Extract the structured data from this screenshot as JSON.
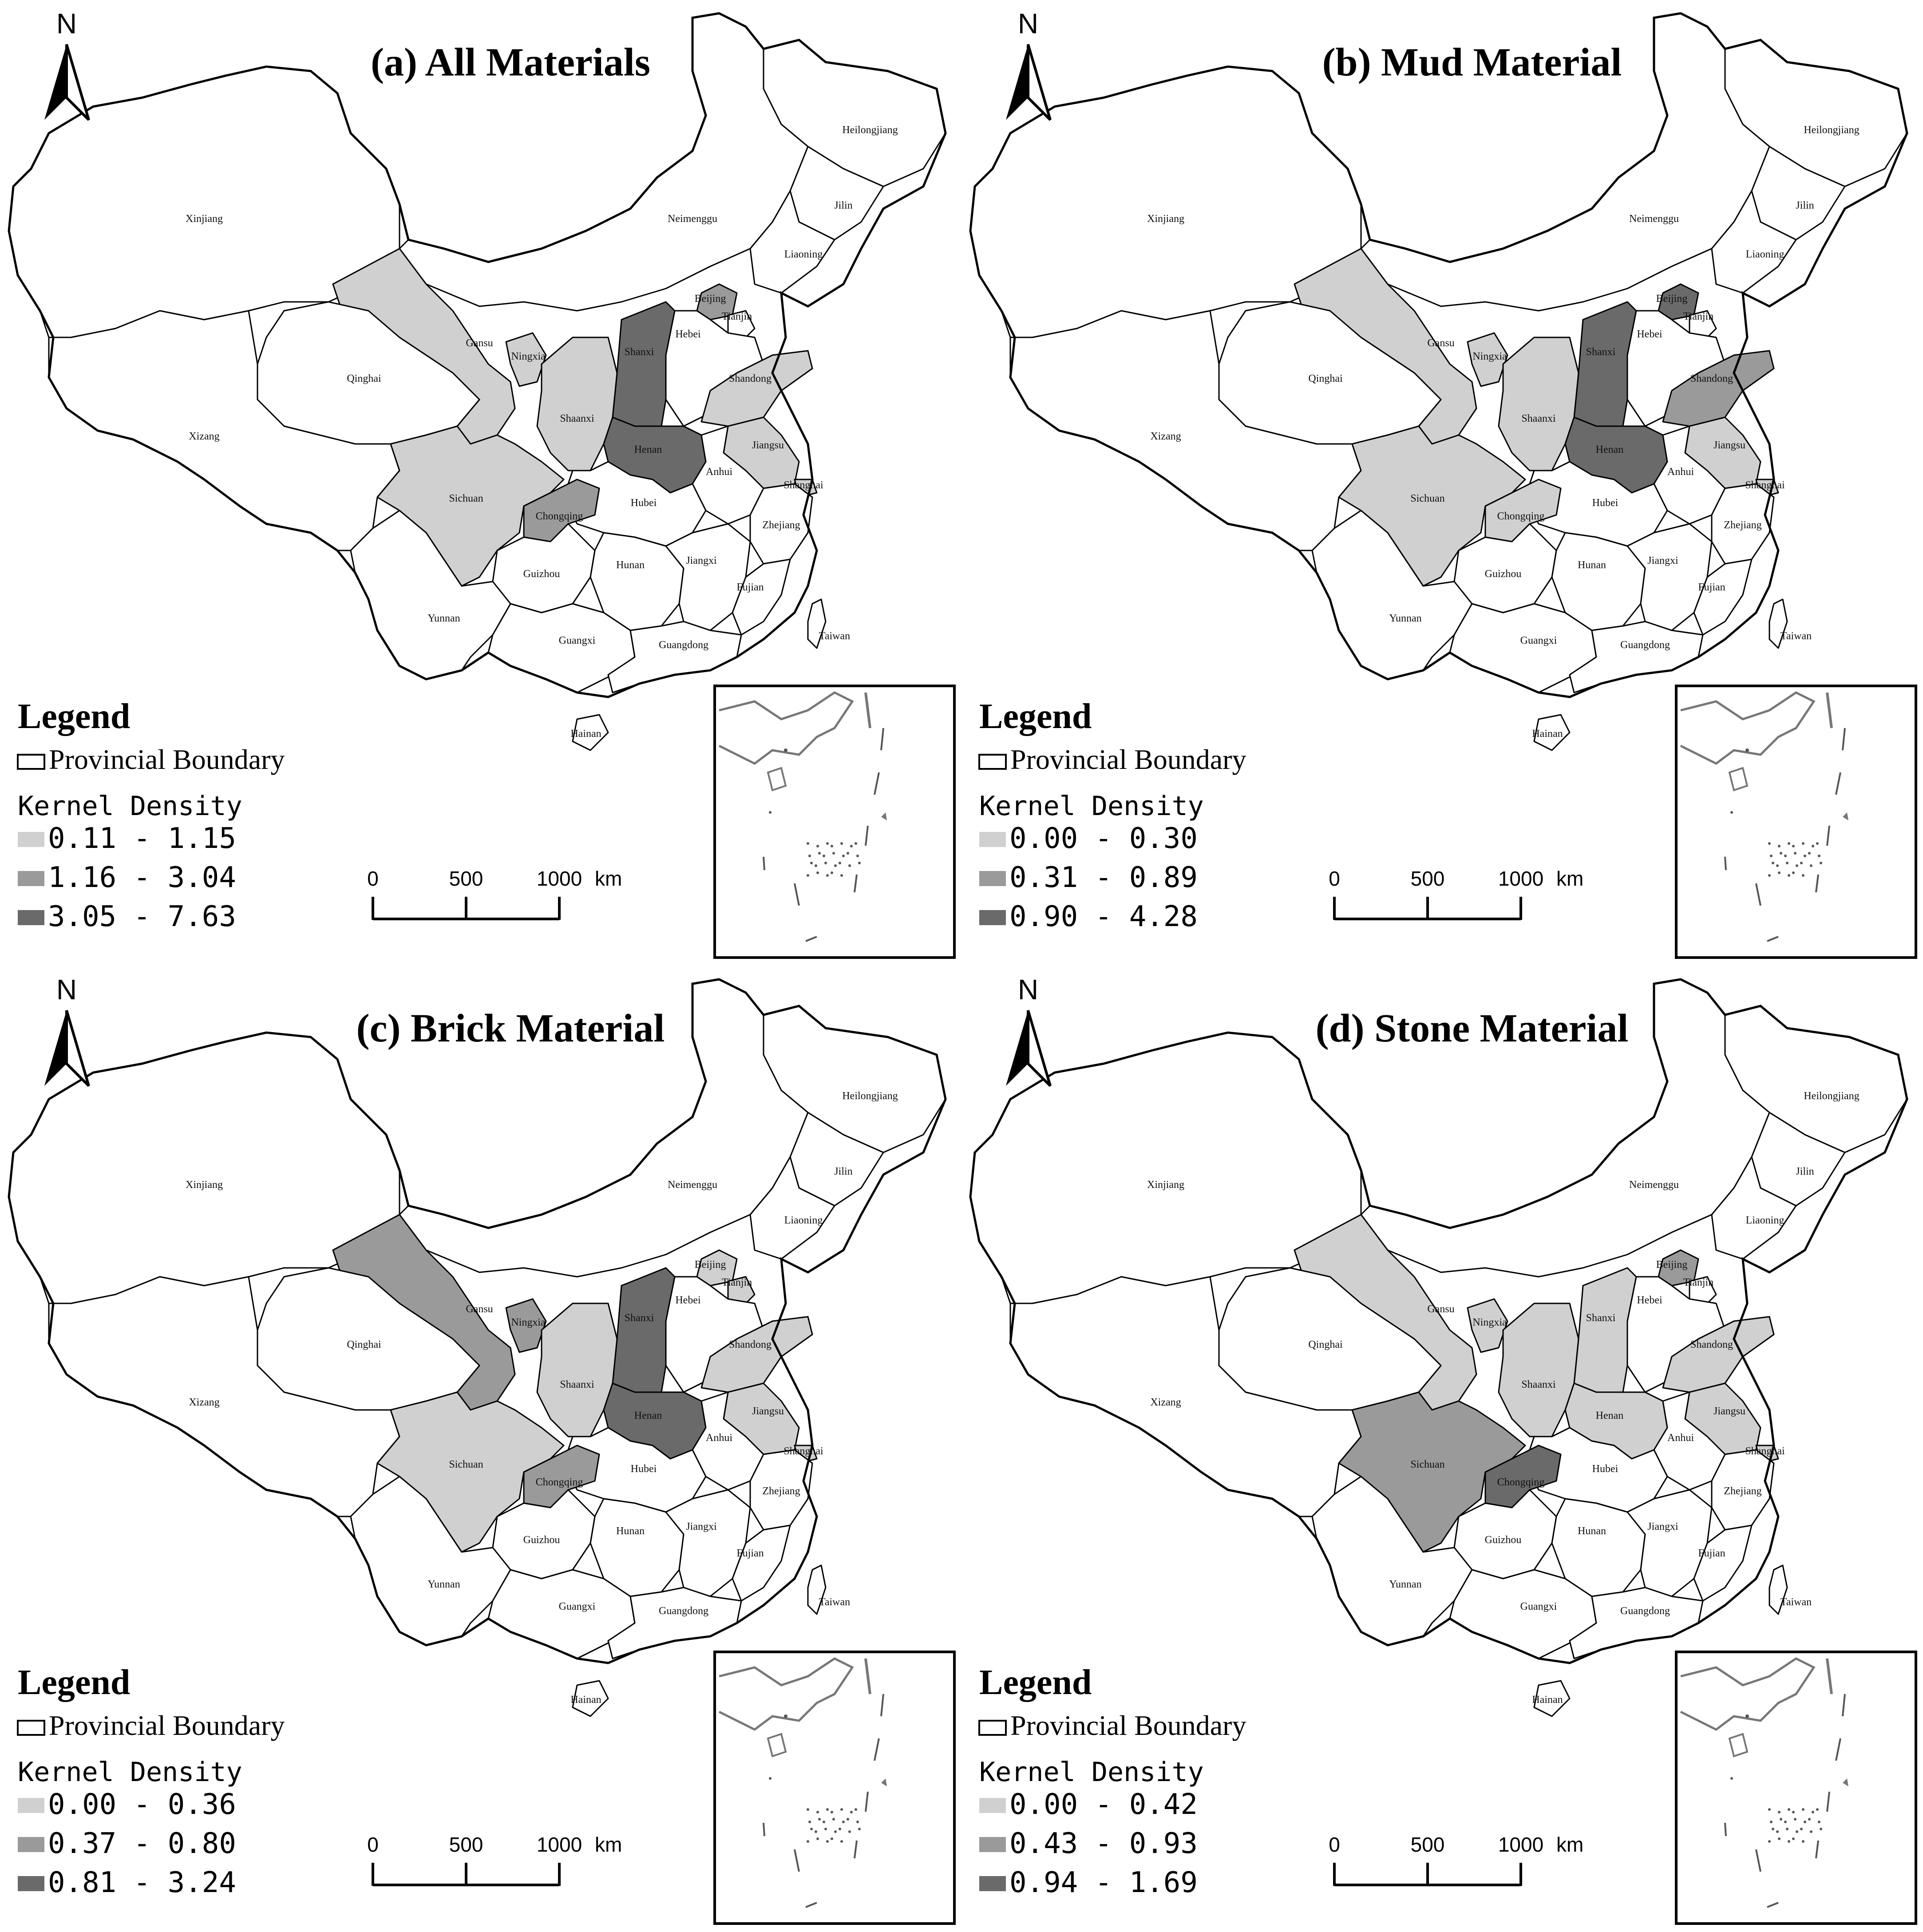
{
  "colors": {
    "background": "#ffffff",
    "boundary": "#000000",
    "class_low": "#d0d0d0",
    "class_mid": "#9a9a9a",
    "class_high": "#6a6a6a",
    "no_class": "#ffffff"
  },
  "north_label": "N",
  "panels": [
    {
      "id": "a",
      "title": "(a) All Materials",
      "legend": {
        "title": "Legend",
        "boundary_label": "Provincial Boundary",
        "density_label": "Kernel Density",
        "classes": [
          {
            "range": "0.11 - 1.15",
            "shade": "low"
          },
          {
            "range": "1.16 - 3.04",
            "shade": "mid"
          },
          {
            "range": "3.05 - 7.63",
            "shade": "high"
          }
        ]
      },
      "scale": {
        "labels": [
          "0",
          "500",
          "1000"
        ],
        "unit": "km"
      },
      "shading": {
        "Shanxi": "high",
        "Henan": "high",
        "Beijing": "mid",
        "Chongqing": "mid",
        "Gansu": "low",
        "Ningxia": "low",
        "Shaanxi": "low",
        "Sichuan": "low",
        "Shandong": "low",
        "Jiangsu": "low",
        "Shanghai": "low"
      }
    },
    {
      "id": "b",
      "title": "(b) Mud Material",
      "legend": {
        "title": "Legend",
        "boundary_label": "Provincial Boundary",
        "density_label": "Kernel Density",
        "classes": [
          {
            "range": "0.00 - 0.30",
            "shade": "low"
          },
          {
            "range": "0.31 - 0.89",
            "shade": "mid"
          },
          {
            "range": "0.90 - 4.28",
            "shade": "high"
          }
        ]
      },
      "scale": {
        "labels": [
          "0",
          "500",
          "1000"
        ],
        "unit": "km"
      },
      "shading": {
        "Shanxi": "high",
        "Henan": "high",
        "Beijing": "high",
        "Shandong": "mid",
        "Gansu": "low",
        "Ningxia": "low",
        "Shaanxi": "low",
        "Sichuan": "low",
        "Chongqing": "low",
        "Jiangsu": "low",
        "Shanghai": "low"
      }
    },
    {
      "id": "c",
      "title": "(c) Brick Material",
      "legend": {
        "title": "Legend",
        "boundary_label": "Provincial Boundary",
        "density_label": "Kernel Density",
        "classes": [
          {
            "range": "0.00 - 0.36",
            "shade": "low"
          },
          {
            "range": "0.37 - 0.80",
            "shade": "mid"
          },
          {
            "range": "0.81 - 3.24",
            "shade": "high"
          }
        ]
      },
      "scale": {
        "labels": [
          "0",
          "500",
          "1000"
        ],
        "unit": "km"
      },
      "shading": {
        "Shanxi": "high",
        "Henan": "high",
        "Gansu": "mid",
        "Ningxia": "mid",
        "Chongqing": "mid",
        "Shaanxi": "low",
        "Sichuan": "low",
        "Shandong": "low",
        "Jiangsu": "low",
        "Shanghai": "low",
        "Beijing": "low",
        "Tianjin": "low"
      }
    },
    {
      "id": "d",
      "title": "(d) Stone Material",
      "legend": {
        "title": "Legend",
        "boundary_label": "Provincial Boundary",
        "density_label": "Kernel Density",
        "classes": [
          {
            "range": "0.00 - 0.42",
            "shade": "low"
          },
          {
            "range": "0.43 - 0.93",
            "shade": "mid"
          },
          {
            "range": "0.94 - 1.69",
            "shade": "high"
          }
        ]
      },
      "scale": {
        "labels": [
          "0",
          "500",
          "1000"
        ],
        "unit": "km"
      },
      "shading": {
        "Chongqing": "high",
        "Sichuan": "mid",
        "Beijing": "mid",
        "Gansu": "low",
        "Ningxia": "low",
        "Shaanxi": "low",
        "Shanxi": "low",
        "Henan": "low",
        "Shandong": "low",
        "Jiangsu": "low",
        "Shanghai": "low"
      }
    }
  ],
  "provinces": [
    "Heilongjiang",
    "Jilin",
    "Liaoning",
    "Neimenggu",
    "Xinjiang",
    "Beijing",
    "Tianjin",
    "Hebei",
    "Shanxi",
    "Shandong",
    "Gansu",
    "Ningxia",
    "Qinghai",
    "Shaanxi",
    "Henan",
    "Jiangsu",
    "Shanghai",
    "Anhui",
    "Xizang",
    "Hubei",
    "Sichuan",
    "Chongqing",
    "Zhejiang",
    "Hunan",
    "Jiangxi",
    "Guizhou",
    "Fujian",
    "Yunnan",
    "Taiwan",
    "Guangxi",
    "Guangdong",
    "Hainan"
  ]
}
